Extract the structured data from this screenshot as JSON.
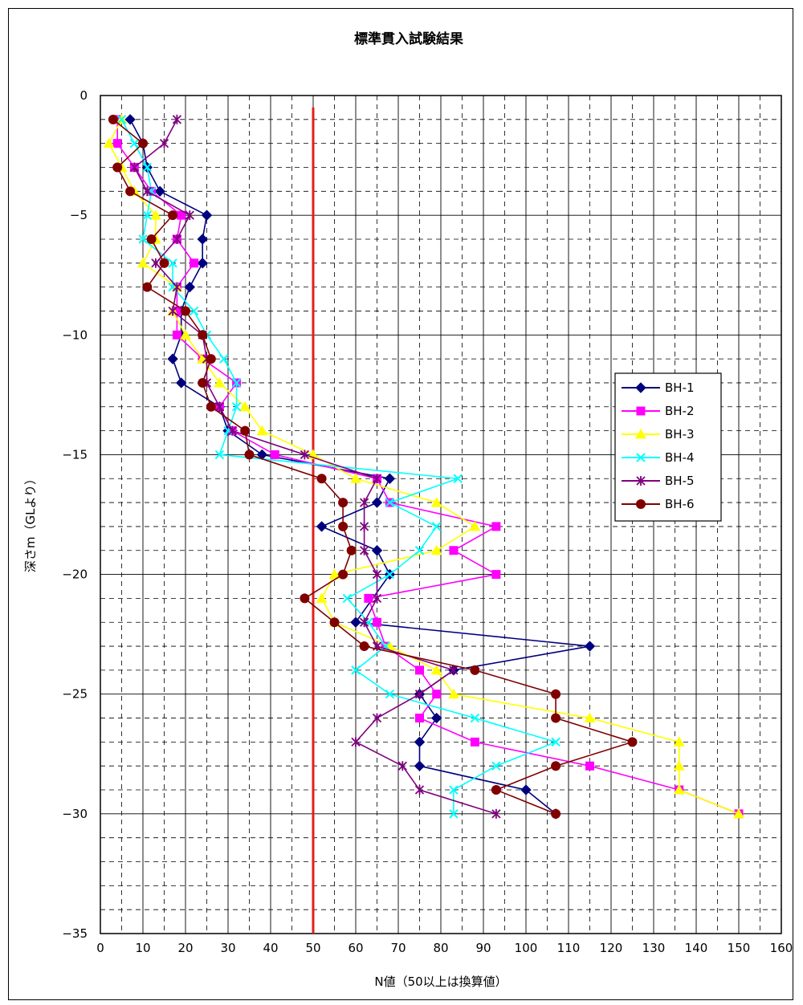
{
  "chart_data": {
    "type": "line",
    "title": "標準貫入試験結果",
    "xlabel": "N値（50以上は換算値）",
    "ylabel": "深さm（GLより）",
    "xlim": [
      0,
      160
    ],
    "ylim": [
      -35,
      0
    ],
    "x_major_ticks": [
      "0",
      "10",
      "20",
      "30",
      "40",
      "50",
      "60",
      "70",
      "80",
      "90",
      "100",
      "110",
      "120",
      "130",
      "140",
      "150",
      "160"
    ],
    "y_major_ticks": [
      "0",
      "-5",
      "-10",
      "-15",
      "-20",
      "-25",
      "-30",
      "-35"
    ],
    "grid": true,
    "legend_position": "right",
    "reference_line": {
      "x": 50,
      "color": "#e0201a"
    },
    "series": [
      {
        "name": "BH-1",
        "color": "#00007f",
        "marker": "diamond",
        "x": [
          7,
          10,
          11,
          14,
          25,
          24,
          24,
          21,
          19,
          19,
          17,
          19,
          28,
          30,
          38,
          68,
          65,
          52,
          65,
          68,
          60,
          115,
          83,
          75,
          79,
          75,
          75,
          100,
          107
        ],
        "y": [
          -1,
          -2,
          -3,
          -4,
          -5,
          -6,
          -7,
          -8,
          -9,
          -10,
          -11,
          -12,
          -13,
          -14,
          -15,
          -16,
          -17,
          -18,
          -19,
          -20,
          -22,
          -23,
          -24,
          -25,
          -26,
          -27,
          -28,
          -29,
          -30
        ]
      },
      {
        "name": "BH-2",
        "color": "#ff00ff",
        "marker": "square",
        "x": [
          4,
          4,
          8,
          12,
          19,
          18,
          22,
          18,
          18,
          18,
          24,
          32,
          28,
          31,
          41,
          65,
          68,
          93,
          83,
          93,
          63,
          65,
          67,
          75,
          79,
          75,
          88,
          115,
          136,
          150
        ],
        "y": [
          -1,
          -2,
          -3,
          -4,
          -5,
          -6,
          -7,
          -8,
          -9,
          -10,
          -11,
          -12,
          -13,
          -14,
          -15,
          -16,
          -17,
          -18,
          -19,
          -20,
          -21,
          -22,
          -23,
          -24,
          -25,
          -26,
          -27,
          -28,
          -29,
          -30
        ]
      },
      {
        "name": "BH-3",
        "color": "#ffff00",
        "marker": "triangle",
        "x": [
          5,
          2,
          5,
          8,
          13,
          13,
          10,
          18,
          17,
          20,
          24,
          28,
          34,
          38,
          50,
          60,
          79,
          88,
          79,
          55,
          52,
          55,
          68,
          79,
          83,
          115,
          136,
          136,
          136,
          150
        ],
        "y": [
          -1,
          -2,
          -3,
          -4,
          -5,
          -6,
          -7,
          -8,
          -9,
          -10,
          -11,
          -12,
          -13,
          -14,
          -15,
          -16,
          -17,
          -18,
          -19,
          -20,
          -21,
          -22,
          -23,
          -24,
          -25,
          -26,
          -27,
          -28,
          -29,
          -30
        ]
      },
      {
        "name": "BH-4",
        "color": "#00ffff",
        "marker": "x",
        "x": [
          5,
          8,
          11,
          12,
          11,
          10,
          17,
          17,
          22,
          25,
          29,
          32,
          32,
          30,
          28,
          84,
          68,
          79,
          75,
          68,
          58,
          63,
          67,
          60,
          68,
          88,
          107,
          93,
          83,
          83
        ],
        "y": [
          -1,
          -2,
          -3,
          -4,
          -5,
          -6,
          -7,
          -8,
          -9,
          -10,
          -11,
          -12,
          -13,
          -14,
          -15,
          -16,
          -17,
          -18,
          -19,
          -20,
          -21,
          -22,
          -23,
          -24,
          -25,
          -26,
          -27,
          -28,
          -29,
          -30
        ]
      },
      {
        "name": "BH-5",
        "color": "#7f007f",
        "marker": "star",
        "x": [
          18,
          15,
          8,
          11,
          21,
          18,
          13,
          18,
          17,
          24,
          25,
          25,
          28,
          31,
          48,
          65,
          62,
          62,
          62,
          65,
          65,
          62,
          65,
          83,
          75,
          65,
          60,
          71,
          75,
          93
        ],
        "y": [
          -1,
          -2,
          -3,
          -4,
          -5,
          -6,
          -7,
          -8,
          -9,
          -10,
          -11,
          -12,
          -13,
          -14,
          -15,
          -16,
          -17,
          -18,
          -19,
          -20,
          -21,
          -22,
          -23,
          -24,
          -25,
          -26,
          -27,
          -28,
          -29,
          -30
        ]
      },
      {
        "name": "BH-6",
        "color": "#800000",
        "marker": "circle",
        "x": [
          3,
          10,
          4,
          7,
          17,
          12,
          15,
          11,
          20,
          24,
          26,
          24,
          26,
          34,
          35,
          52,
          57,
          57,
          59,
          57,
          48,
          55,
          62,
          88,
          107,
          107,
          125,
          107,
          93,
          107
        ],
        "y": [
          -1,
          -2,
          -3,
          -4,
          -5,
          -6,
          -7,
          -8,
          -9,
          -10,
          -11,
          -12,
          -13,
          -14,
          -15,
          -16,
          -17,
          -18,
          -19,
          -20,
          -21,
          -22,
          -23,
          -24,
          -25,
          -26,
          -27,
          -28,
          -29,
          -30
        ]
      }
    ]
  }
}
